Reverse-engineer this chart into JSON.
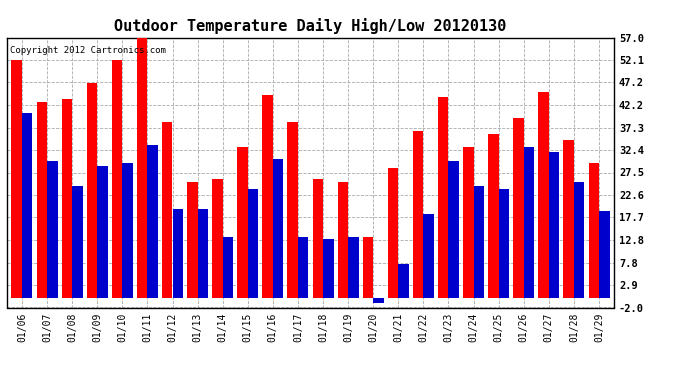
{
  "title": "Outdoor Temperature Daily High/Low 20120130",
  "copyright": "Copyright 2012 Cartronics.com",
  "dates": [
    "01/06",
    "01/07",
    "01/08",
    "01/09",
    "01/10",
    "01/11",
    "01/12",
    "01/13",
    "01/14",
    "01/15",
    "01/16",
    "01/17",
    "01/18",
    "01/19",
    "01/20",
    "01/21",
    "01/22",
    "01/23",
    "01/24",
    "01/25",
    "01/26",
    "01/27",
    "01/28",
    "01/29"
  ],
  "highs": [
    52.0,
    43.0,
    43.5,
    47.0,
    52.0,
    57.0,
    38.5,
    25.5,
    26.0,
    33.0,
    44.5,
    38.5,
    26.0,
    25.5,
    13.5,
    28.5,
    36.5,
    44.0,
    33.0,
    36.0,
    39.5,
    45.0,
    34.5,
    29.5
  ],
  "lows": [
    40.5,
    30.0,
    24.5,
    29.0,
    29.5,
    33.5,
    19.5,
    19.5,
    13.5,
    24.0,
    30.5,
    13.5,
    13.0,
    13.5,
    -1.0,
    7.5,
    18.5,
    30.0,
    24.5,
    24.0,
    33.0,
    32.0,
    25.5,
    19.0
  ],
  "high_color": "#ff0000",
  "low_color": "#0000cc",
  "yticks": [
    -2.0,
    2.9,
    7.8,
    12.8,
    17.7,
    22.6,
    27.5,
    32.4,
    37.3,
    42.2,
    47.2,
    52.1,
    57.0
  ],
  "ylim": [
    -2.0,
    57.0
  ],
  "bg_color": "#ffffff",
  "grid_color": "#aaaaaa",
  "title_fontsize": 11,
  "copyright_fontsize": 6.5,
  "bar_width": 0.42
}
